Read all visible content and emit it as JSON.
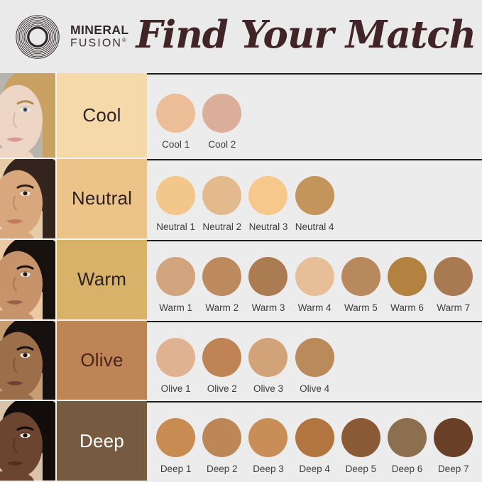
{
  "header": {
    "brand": {
      "line1": "MINERAL",
      "line2": "FUSION",
      "registered": "®"
    },
    "title": "Find Your Match"
  },
  "colors": {
    "page_bg": "#ebeaea",
    "swatch_area_bg": "#edecec",
    "title_text": "#402428",
    "logo": "#332829",
    "divider_line": "#1d1b1b",
    "swatch_label_text": "#3d3d3d"
  },
  "rows": [
    {
      "label": "Cool",
      "band_color": "#f6d9ab",
      "label_color": "#2d2326",
      "photo": {
        "bg": "#b8b4ad",
        "skin": "#eed6c6",
        "shade": "#d9b9a5",
        "hair": "#c9a162",
        "brow": "#b08c54",
        "eye": "#5a7886",
        "lip": "#d89b8f"
      },
      "swatches": [
        {
          "label": "Cool 1",
          "color": "#edbd98"
        },
        {
          "label": "Cool 2",
          "color": "#dbae9a"
        }
      ]
    },
    {
      "label": "Neutral",
      "band_color": "#ecc489",
      "label_color": "#2d2326",
      "photo": {
        "bg": "#e5cba6",
        "skin": "#d8a77d",
        "shade": "#bd8a60",
        "hair": "#33251d",
        "brow": "#2e211a",
        "eye": "#3a241a",
        "lip": "#c57a5d"
      },
      "swatches": [
        {
          "label": "Neutral 1",
          "color": "#f3c68c"
        },
        {
          "label": "Neutral 2",
          "color": "#e2ba8d"
        },
        {
          "label": "Neutral 3",
          "color": "#f6c88c"
        },
        {
          "label": "Neutral 4",
          "color": "#c3955d"
        }
      ]
    },
    {
      "label": "Warm",
      "band_color": "#d9b269",
      "label_color": "#2d2326",
      "photo": {
        "bg": "#eccaa1",
        "skin": "#c6936a",
        "shade": "#a87850",
        "hair": "#18120f",
        "brow": "#17110e",
        "eye": "#2a1a12",
        "lip": "#9c6049"
      },
      "swatches": [
        {
          "label": "Warm 1",
          "color": "#d2a47e"
        },
        {
          "label": "Warm 2",
          "color": "#bd8a5e"
        },
        {
          "label": "Warm 3",
          "color": "#ab7b51"
        },
        {
          "label": "Warm 4",
          "color": "#e6bf99"
        },
        {
          "label": "Warm 5",
          "color": "#b8895c"
        },
        {
          "label": "Warm 6",
          "color": "#b48240"
        },
        {
          "label": "Warm 7",
          "color": "#a97a51"
        }
      ]
    },
    {
      "label": "Olive",
      "band_color": "#bd8456",
      "label_color": "#4b231d",
      "photo": {
        "bg": "#c79d72",
        "skin": "#9c6f4a",
        "shade": "#815737",
        "hair": "#161110",
        "brow": "#141010",
        "eye": "#1d120d",
        "lip": "#6f4334"
      },
      "swatches": [
        {
          "label": "Olive 1",
          "color": "#dfb292"
        },
        {
          "label": "Olive 2",
          "color": "#bf8354"
        },
        {
          "label": "Olive 3",
          "color": "#d2a278"
        },
        {
          "label": "Olive 4",
          "color": "#bb8a5b"
        }
      ]
    },
    {
      "label": "Deep",
      "band_color": "#765b40",
      "label_color": "#ffffff",
      "photo": {
        "bg": "#d9c4a9",
        "skin": "#6b4530",
        "shade": "#55351f",
        "hair": "#120d0a",
        "brow": "#100b08",
        "eye": "#150d08",
        "lip": "#53301f"
      },
      "swatches": [
        {
          "label": "Deep 1",
          "color": "#c88c52"
        },
        {
          "label": "Deep 2",
          "color": "#bd8656"
        },
        {
          "label": "Deep 3",
          "color": "#c98e58"
        },
        {
          "label": "Deep 4",
          "color": "#b3753f"
        },
        {
          "label": "Deep 5",
          "color": "#8a5a36"
        },
        {
          "label": "Deep 6",
          "color": "#8c6f4e"
        },
        {
          "label": "Deep 7",
          "color": "#693f27"
        }
      ]
    }
  ]
}
